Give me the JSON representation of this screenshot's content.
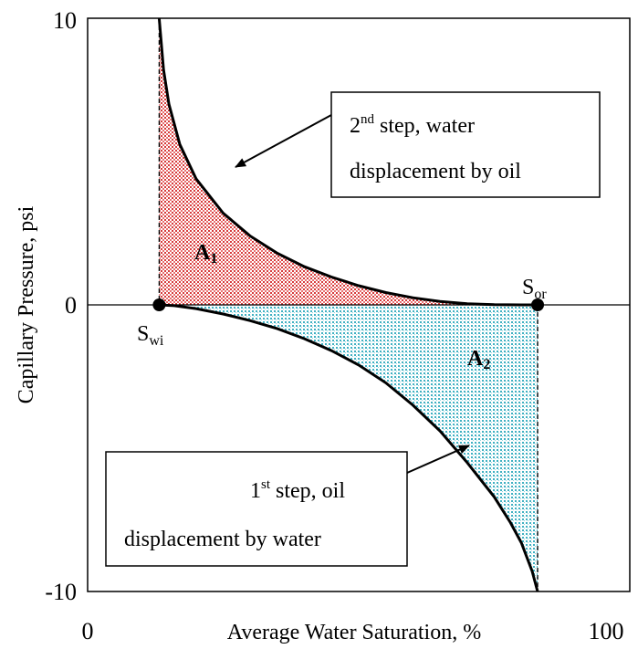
{
  "chart_data": {
    "type": "line",
    "title": "",
    "xlabel": "Average Water Saturation, %",
    "ylabel": "Capillary Pressure, psi",
    "xlim": [
      0,
      100
    ],
    "ylim": [
      -10,
      10
    ],
    "x_ticks": [
      "0",
      "100"
    ],
    "y_ticks": [
      "10",
      "0",
      "-10"
    ],
    "grid": false,
    "legend": "none",
    "series": [
      {
        "x": [
          13.2,
          14,
          15,
          17,
          20,
          25,
          30,
          35,
          40,
          45,
          50,
          55,
          60,
          65,
          70,
          75,
          80,
          83
        ],
        "y": [
          10,
          8.2,
          7.0,
          5.6,
          4.4,
          3.2,
          2.4,
          1.8,
          1.33,
          0.97,
          0.67,
          0.43,
          0.25,
          0.12,
          0.04,
          0.01,
          0.0,
          0.0
        ]
      },
      {
        "x": [
          13.2,
          16,
          20,
          25,
          30,
          35,
          40,
          45,
          50,
          55,
          60,
          65,
          70,
          75,
          78,
          80,
          82,
          83
        ],
        "y": [
          0,
          -0.03,
          -0.13,
          -0.32,
          -0.55,
          -0.83,
          -1.18,
          -1.6,
          -2.1,
          -2.72,
          -3.5,
          -4.4,
          -5.5,
          -6.7,
          -7.6,
          -8.3,
          -9.3,
          -10
        ]
      }
    ],
    "points": [
      {
        "label": "S",
        "sub": "wi",
        "x": 13.2,
        "y": 0
      },
      {
        "label": "S",
        "sub": "or",
        "x": 83,
        "y": 0
      }
    ],
    "regions": [
      {
        "label": "A",
        "sub": "1",
        "x": 21,
        "y": 1.8,
        "color": "#e06060"
      },
      {
        "label": "A",
        "sub": "2",
        "x": 66,
        "y": -1.9,
        "color": "#5bc0c8"
      }
    ],
    "annotations": [
      {
        "line1_pre": "2",
        "line1_sup": "nd",
        "line1_post": " step, water",
        "line2": "displacement by oil"
      },
      {
        "line1_pre": "1",
        "line1_sup": "st",
        "line1_post": " step, oil",
        "line2": "displacement by water"
      }
    ]
  }
}
